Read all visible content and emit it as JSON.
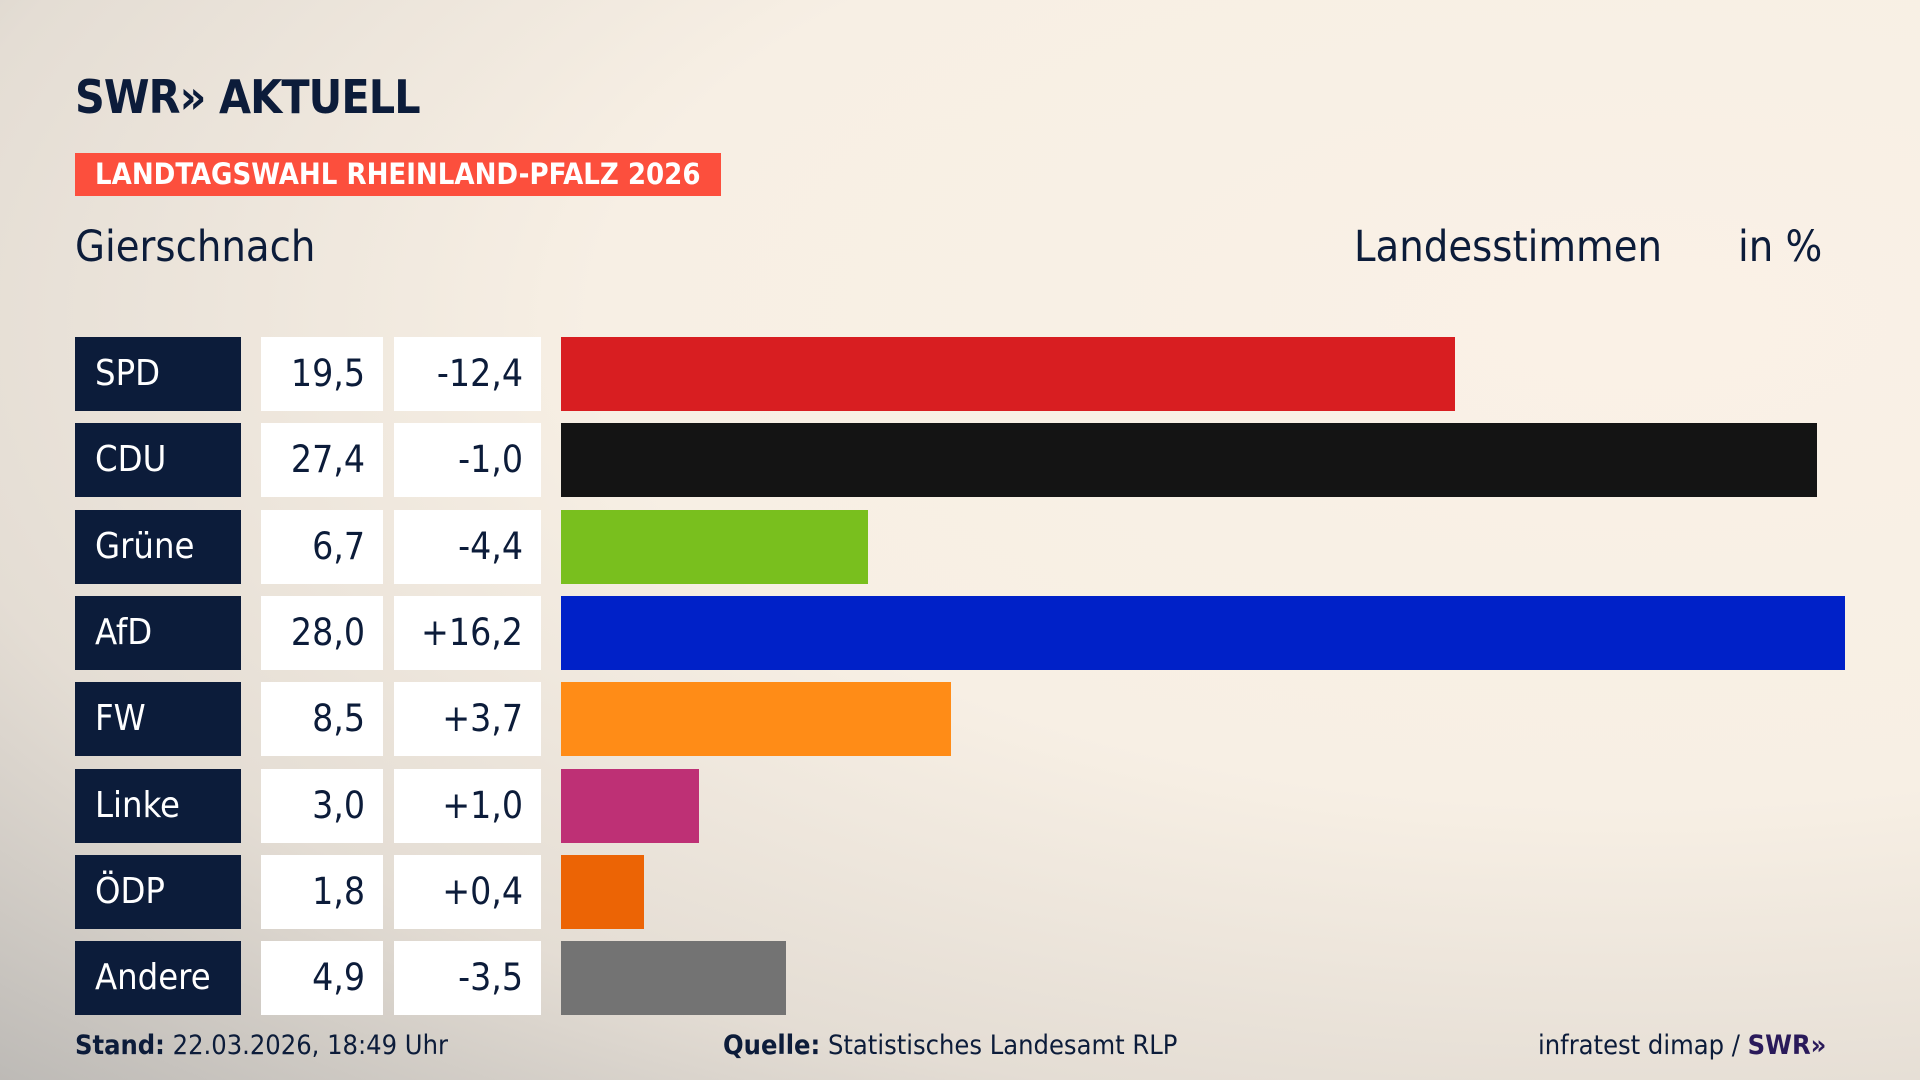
{
  "logo": "SWR» AKTUELL",
  "banner": "LANDTAGSWAHL RHEINLAND-PFALZ 2026",
  "title": "Gierschnach",
  "header_label": "Landesstimmen",
  "header_unit": "in %",
  "chart_data": {
    "type": "bar",
    "orientation": "horizontal",
    "categories": [
      "SPD",
      "CDU",
      "Grüne",
      "AfD",
      "FW",
      "Linke",
      "ÖDP",
      "Andere"
    ],
    "values": [
      19.5,
      27.4,
      6.7,
      28.0,
      8.5,
      3.0,
      1.8,
      4.9
    ],
    "values_label": [
      "19,5",
      "27,4",
      "6,7",
      "28,0",
      "8,5",
      "3,0",
      "1,8",
      "4,9"
    ],
    "diffs": [
      "-12,4",
      "-1,0",
      "-4,4",
      "+16,2",
      "+3,7",
      "+1,0",
      "+0,4",
      "-3,5"
    ],
    "colors": [
      "#d81e21",
      "#141414",
      "#79bf1e",
      "#0021c8",
      "#ff8c17",
      "#be3075",
      "#ec6405",
      "#737373"
    ],
    "grid": false
  },
  "footer": {
    "stand_label": "Stand:",
    "stand": "22.03.2026, 18:49 Uhr",
    "source_label": "Quelle:",
    "source": "Statistisches Landesamt RLP",
    "credit": "infratest dimap / ",
    "credit_logo": "SWR»"
  }
}
